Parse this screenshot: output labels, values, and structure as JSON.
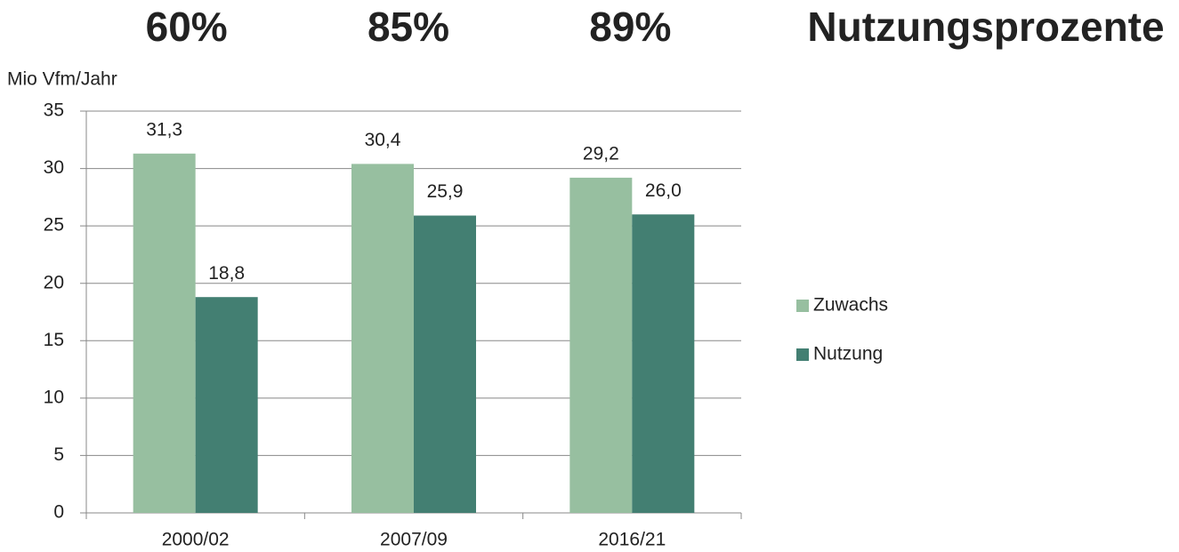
{
  "chart_data": {
    "type": "bar",
    "title": "Nutzungsprozente",
    "annotations": [
      "60%",
      "85%",
      "89%"
    ],
    "ylabel": "Mio Vfm/Jahr",
    "categories": [
      "2000/02",
      "2007/09",
      "2016/21"
    ],
    "series": [
      {
        "name": "Zuwachs",
        "color": "#97bfa0",
        "values": [
          31.3,
          30.4,
          29.2
        ],
        "value_labels": [
          "31,3",
          "30,4",
          "29,2"
        ]
      },
      {
        "name": "Nutzung",
        "color": "#437f72",
        "values": [
          18.8,
          25.9,
          26.0
        ],
        "value_labels": [
          "18,8",
          "25,9",
          "26,0"
        ]
      }
    ],
    "ylim": [
      0,
      35
    ],
    "yticks": [
      0,
      5,
      10,
      15,
      20,
      25,
      30,
      35
    ],
    "grid": true,
    "legend": "right"
  }
}
